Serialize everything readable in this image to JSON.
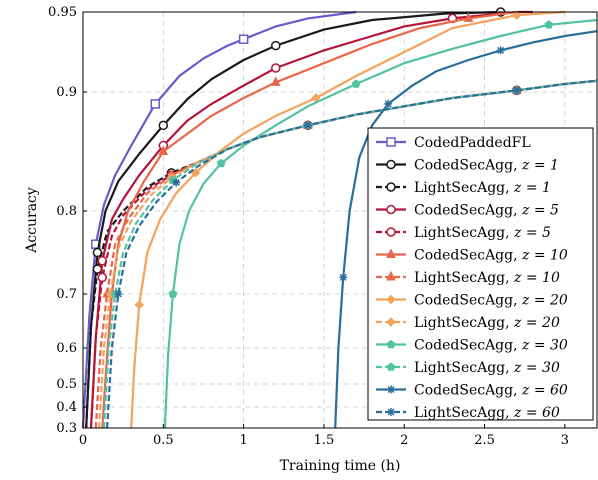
{
  "chart_data": {
    "type": "line",
    "xlabel": "Training time (h)",
    "ylabel": "Accuracy",
    "xlim": [
      0,
      3.2
    ],
    "ylim": [
      0.3,
      0.95
    ],
    "xticks": [
      0,
      0.5,
      1,
      1.5,
      2,
      2.5,
      3
    ],
    "xtick_labels": [
      "0",
      "0.5",
      "1",
      "1.5",
      "2",
      "2.5",
      "3"
    ],
    "yticks": [
      0.3,
      0.4,
      0.5,
      0.6,
      0.7,
      0.8,
      0.9,
      0.95
    ],
    "ytick_labels": [
      "0.3",
      "0.4",
      "0.5",
      "0.6",
      "0.7",
      "0.8",
      "0.9",
      "0.95"
    ],
    "grid": true,
    "legend_position": "bottom-right",
    "series": [
      {
        "name": "CodedPaddedFL",
        "color": "#6a5acd",
        "dashed": false,
        "marker": "square",
        "x": [
          0,
          0.04,
          0.08,
          0.13,
          0.2,
          0.3,
          0.45,
          0.6,
          0.75,
          0.9,
          1.0,
          1.2,
          1.4,
          1.7
        ],
        "y": [
          0.3,
          0.66,
          0.76,
          0.805,
          0.83,
          0.855,
          0.89,
          0.91,
          0.921,
          0.929,
          0.933,
          0.941,
          0.946,
          0.95
        ]
      },
      {
        "name": "CodedSecAgg, z = 1",
        "color": "#1a1a1a",
        "dashed": false,
        "marker": "circle",
        "x": [
          0.02,
          0.05,
          0.09,
          0.14,
          0.22,
          0.35,
          0.5,
          0.65,
          0.8,
          1.0,
          1.2,
          1.5,
          1.8,
          2.25,
          2.6
        ],
        "y": [
          0.3,
          0.64,
          0.75,
          0.8,
          0.825,
          0.848,
          0.872,
          0.894,
          0.908,
          0.92,
          0.929,
          0.939,
          0.945,
          0.949,
          0.95
        ]
      },
      {
        "name": "LightSecAgg, z = 1",
        "color": "#1a1a1a",
        "dashed": true,
        "marker": "circle",
        "x": [
          0.02,
          0.05,
          0.09,
          0.15,
          0.25,
          0.4,
          0.55,
          0.7,
          0.9,
          1.1,
          1.4,
          1.7,
          2.0,
          2.3,
          2.7,
          3.0,
          3.2
        ],
        "y": [
          0.3,
          0.64,
          0.73,
          0.775,
          0.8,
          0.82,
          0.832,
          0.84,
          0.852,
          0.862,
          0.872,
          0.881,
          0.888,
          0.895,
          0.901,
          0.905,
          0.907
        ]
      },
      {
        "name": "CodedSecAgg, z = 5",
        "color": "#b4143c",
        "dashed": false,
        "marker": "circle",
        "x": [
          0.05,
          0.08,
          0.12,
          0.18,
          0.25,
          0.35,
          0.5,
          0.65,
          0.8,
          1.0,
          1.2,
          1.5,
          1.8,
          2.0,
          2.3,
          2.7,
          2.8
        ],
        "y": [
          0.3,
          0.62,
          0.74,
          0.79,
          0.81,
          0.83,
          0.855,
          0.876,
          0.89,
          0.904,
          0.915,
          0.926,
          0.935,
          0.941,
          0.946,
          0.95,
          0.95
        ]
      },
      {
        "name": "LightSecAgg, z = 5",
        "color": "#b4143c",
        "dashed": true,
        "marker": "circle",
        "x": [
          0.05,
          0.08,
          0.12,
          0.18,
          0.25,
          0.4,
          0.55,
          0.7,
          0.9,
          1.1,
          1.4,
          1.7,
          2.0,
          2.3,
          2.7,
          3.0,
          3.2
        ],
        "y": [
          0.3,
          0.62,
          0.72,
          0.77,
          0.795,
          0.818,
          0.83,
          0.84,
          0.852,
          0.862,
          0.872,
          0.881,
          0.888,
          0.895,
          0.901,
          0.905,
          0.907
        ]
      },
      {
        "name": "CodedSecAgg, z = 10",
        "color": "#e8674a",
        "dashed": false,
        "marker": "triangle",
        "x": [
          0.12,
          0.15,
          0.18,
          0.22,
          0.28,
          0.38,
          0.5,
          0.65,
          0.8,
          1.0,
          1.2,
          1.5,
          1.8,
          2.1,
          2.4,
          2.7
        ],
        "y": [
          0.3,
          0.58,
          0.7,
          0.76,
          0.8,
          0.825,
          0.85,
          0.865,
          0.88,
          0.895,
          0.906,
          0.918,
          0.93,
          0.94,
          0.946,
          0.95
        ]
      },
      {
        "name": "LightSecAgg, z = 10",
        "color": "#e8674a",
        "dashed": true,
        "marker": "triangle",
        "x": [
          0.08,
          0.11,
          0.15,
          0.2,
          0.28,
          0.4,
          0.55,
          0.7,
          0.9,
          1.1,
          1.4,
          1.7,
          2.0,
          2.3,
          2.7,
          3.0,
          3.2
        ],
        "y": [
          0.3,
          0.6,
          0.7,
          0.76,
          0.79,
          0.815,
          0.83,
          0.84,
          0.852,
          0.862,
          0.872,
          0.881,
          0.888,
          0.895,
          0.901,
          0.905,
          0.907
        ]
      },
      {
        "name": "CodedSecAgg, z = 20",
        "color": "#f5a25d",
        "dashed": false,
        "marker": "diamond",
        "x": [
          0.3,
          0.32,
          0.35,
          0.4,
          0.48,
          0.58,
          0.7,
          0.85,
          1.0,
          1.2,
          1.45,
          1.7,
          2.0,
          2.3,
          2.7,
          3.0
        ],
        "y": [
          0.3,
          0.55,
          0.68,
          0.75,
          0.79,
          0.815,
          0.832,
          0.85,
          0.865,
          0.88,
          0.895,
          0.91,
          0.925,
          0.94,
          0.948,
          0.95
        ]
      },
      {
        "name": "LightSecAgg, z = 20",
        "color": "#f5a25d",
        "dashed": true,
        "marker": "diamond",
        "x": [
          0.1,
          0.13,
          0.17,
          0.22,
          0.3,
          0.42,
          0.55,
          0.7,
          0.9,
          1.1,
          1.4,
          1.7,
          2.0,
          2.3,
          2.7,
          3.0,
          3.2
        ],
        "y": [
          0.3,
          0.6,
          0.7,
          0.755,
          0.788,
          0.813,
          0.828,
          0.84,
          0.852,
          0.862,
          0.872,
          0.881,
          0.888,
          0.895,
          0.901,
          0.905,
          0.907
        ]
      },
      {
        "name": "CodedSecAgg, z = 30",
        "color": "#52c2a0",
        "dashed": false,
        "marker": "pentagon",
        "x": [
          0.51,
          0.53,
          0.56,
          0.6,
          0.66,
          0.75,
          0.86,
          1.0,
          1.2,
          1.4,
          1.7,
          2.0,
          2.3,
          2.6,
          2.9,
          3.2
        ],
        "y": [
          0.3,
          0.58,
          0.7,
          0.76,
          0.8,
          0.823,
          0.84,
          0.855,
          0.872,
          0.888,
          0.905,
          0.918,
          0.927,
          0.935,
          0.942,
          0.945
        ]
      },
      {
        "name": "LightSecAgg, z = 30",
        "color": "#52c2a0",
        "dashed": true,
        "marker": "pentagon",
        "x": [
          0.13,
          0.16,
          0.2,
          0.25,
          0.33,
          0.44,
          0.56,
          0.7,
          0.9,
          1.1,
          1.4,
          1.7,
          2.0,
          2.3,
          2.7,
          3.0,
          3.2
        ],
        "y": [
          0.3,
          0.6,
          0.7,
          0.75,
          0.785,
          0.81,
          0.826,
          0.839,
          0.852,
          0.862,
          0.872,
          0.881,
          0.888,
          0.895,
          0.901,
          0.905,
          0.907
        ]
      },
      {
        "name": "CodedSecAgg, z = 60",
        "color": "#2a6d9a",
        "dashed": false,
        "marker": "star",
        "x": [
          1.57,
          1.59,
          1.62,
          1.66,
          1.72,
          1.8,
          1.9,
          2.05,
          2.2,
          2.4,
          2.6,
          2.8,
          3.0,
          3.2
        ],
        "y": [
          0.3,
          0.6,
          0.72,
          0.8,
          0.845,
          0.872,
          0.89,
          0.904,
          0.913,
          0.92,
          0.926,
          0.931,
          0.935,
          0.938
        ]
      },
      {
        "name": "LightSecAgg, z = 60",
        "color": "#2a6d9a",
        "dashed": true,
        "marker": "star",
        "x": [
          0.15,
          0.18,
          0.22,
          0.27,
          0.35,
          0.46,
          0.58,
          0.72,
          0.9,
          1.1,
          1.4,
          1.7,
          2.0,
          2.3,
          2.7,
          3.0,
          3.2
        ],
        "y": [
          0.3,
          0.6,
          0.7,
          0.75,
          0.782,
          0.808,
          0.824,
          0.838,
          0.852,
          0.862,
          0.872,
          0.881,
          0.888,
          0.895,
          0.901,
          0.905,
          0.907
        ]
      }
    ],
    "legend_labels": [
      {
        "text": "CodedPaddedFL",
        "z": ""
      },
      {
        "text": "CodedSecAgg, ",
        "z": "z = 1"
      },
      {
        "text": "LightSecAgg, ",
        "z": "z = 1"
      },
      {
        "text": "CodedSecAgg, ",
        "z": "z = 5"
      },
      {
        "text": "LightSecAgg, ",
        "z": "z = 5"
      },
      {
        "text": "CodedSecAgg, ",
        "z": "z = 10"
      },
      {
        "text": "LightSecAgg, ",
        "z": "z = 10"
      },
      {
        "text": "CodedSecAgg, ",
        "z": "z = 20"
      },
      {
        "text": "LightSecAgg, ",
        "z": "z = 20"
      },
      {
        "text": "CodedSecAgg, ",
        "z": "z = 30"
      },
      {
        "text": "LightSecAgg, ",
        "z": "z = 30"
      },
      {
        "text": "CodedSecAgg, ",
        "z": "z = 60"
      },
      {
        "text": "LightSecAgg, ",
        "z": "z = 60"
      }
    ]
  }
}
